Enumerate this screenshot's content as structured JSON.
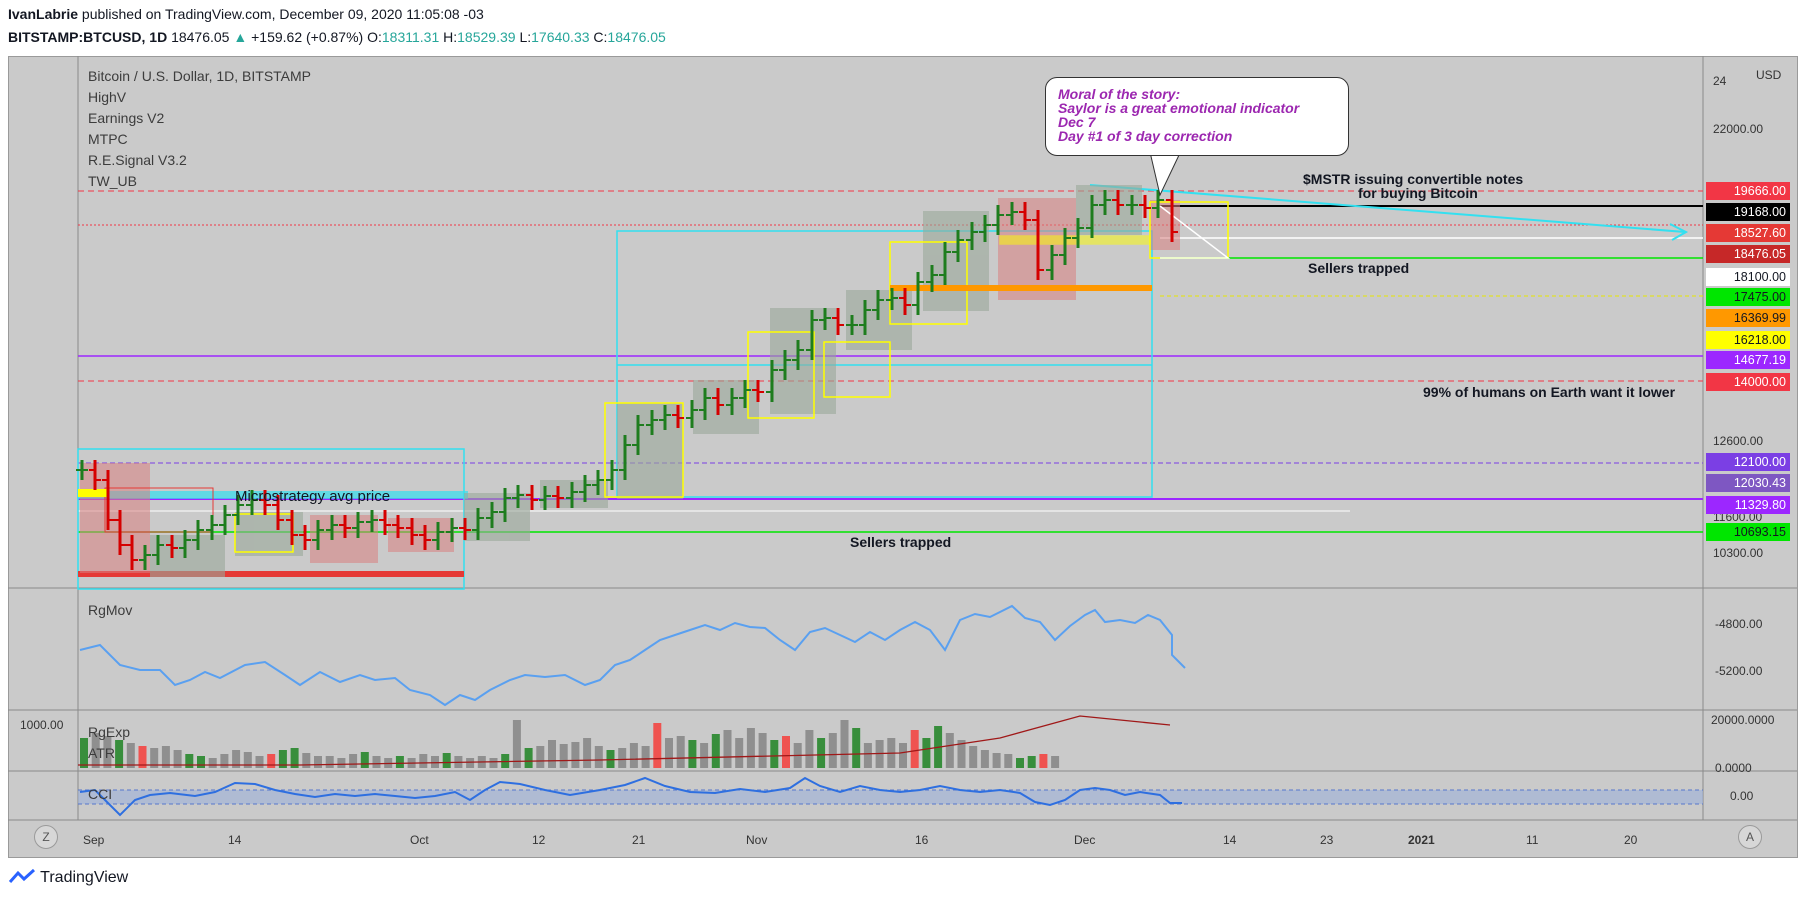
{
  "header": {
    "author": "IvanLabrie",
    "published": "published on TradingView.com, December 09, 2020 11:05:08 -03",
    "symbol": "BITSTAMP:BTCUSD, 1D",
    "last": "18476.05",
    "change_arrow": "▲",
    "change": "+159.62 (+0.87%)",
    "o_label": "O:",
    "o_value": "18311.31",
    "h_label": "H:",
    "h_value": "18529.39",
    "l_label": "L:",
    "l_value": "17640.33",
    "c_label": "C:",
    "c_value": "18476.05"
  },
  "chart": {
    "title": "Bitcoin / U.S. Dollar, 1D, BITSTAMP",
    "indicators": [
      "HighV",
      "Earnings V2",
      "MTPC",
      "R.E.Signal V3.2",
      "TW_UB"
    ],
    "currency": "USD"
  },
  "price_axis": {
    "labels": [
      "24",
      "22000.00",
      "12600.00",
      "11600.00",
      "10300.00"
    ]
  },
  "price_tags": [
    {
      "value": "19666.00",
      "bg": "#f23645",
      "fg": "#ffffff"
    },
    {
      "value": "19168.00",
      "bg": "#000000",
      "fg": "#ffffff"
    },
    {
      "value": "18527.60",
      "bg": "#e53935",
      "fg": "#ffffff"
    },
    {
      "value": "18476.05",
      "bg": "#c62828",
      "fg": "#ffffff"
    },
    {
      "value": "18100.00",
      "bg": "#ffffff",
      "fg": "#131722"
    },
    {
      "value": "17475.00",
      "bg": "#00e600",
      "fg": "#131722"
    },
    {
      "value": "16369.99",
      "bg": "#ff9800",
      "fg": "#131722"
    },
    {
      "value": "16218.00",
      "bg": "#ffff00",
      "fg": "#131722"
    },
    {
      "value": "14677.19",
      "bg": "#9c27ff",
      "fg": "#ffffff"
    },
    {
      "value": "14000.00",
      "bg": "#f23645",
      "fg": "#ffffff"
    },
    {
      "value": "12100.00",
      "bg": "#7b3fe4",
      "fg": "#ffffff"
    },
    {
      "value": "12030.43",
      "bg": "#7e57c2",
      "fg": "#ffffff"
    },
    {
      "value": "11329.80",
      "bg": "#9c27ff",
      "fg": "#ffffff"
    },
    {
      "value": "10693.15",
      "bg": "#00e600",
      "fg": "#131722"
    }
  ],
  "time_axis": {
    "labels": [
      "Sep",
      "14",
      "Oct",
      "12",
      "21",
      "Nov",
      "16",
      "Dec",
      "14",
      "23",
      "2021",
      "11",
      "20"
    ]
  },
  "annotations": {
    "callout": [
      "Moral of the story:",
      "Saylor is a great emotional indicator",
      "Dec 7",
      "Day #1 of 3 day correction"
    ],
    "mstr": [
      "$MSTR issuing convertible notes",
      "for buying Bitcoin"
    ],
    "sellers_trapped_top": "Sellers trapped",
    "humans": "99% of humans on Earth want it lower",
    "microstrategy": "Microstrategy avg price",
    "sellers_trapped_bottom": "Sellers trapped"
  },
  "panes": {
    "rgmov": {
      "label": "RgMov",
      "axis": [
        "-4800.00",
        "-5200.00"
      ]
    },
    "rgexp": {
      "label": "RgExp",
      "sub": "ATR",
      "left_value": "1000.00",
      "axis": [
        "20000.0000",
        "0.0000"
      ]
    },
    "cci": {
      "label": "CCI",
      "axis": [
        "0.00"
      ]
    }
  },
  "buttons": {
    "z": "Z",
    "a": "A"
  },
  "footer": {
    "brand": "TradingView"
  },
  "colors": {
    "bg": "#cacaca",
    "up": "#1e7d1e",
    "down": "#d50000",
    "cyan": "#33e0f0",
    "purple": "#9c27ff"
  }
}
